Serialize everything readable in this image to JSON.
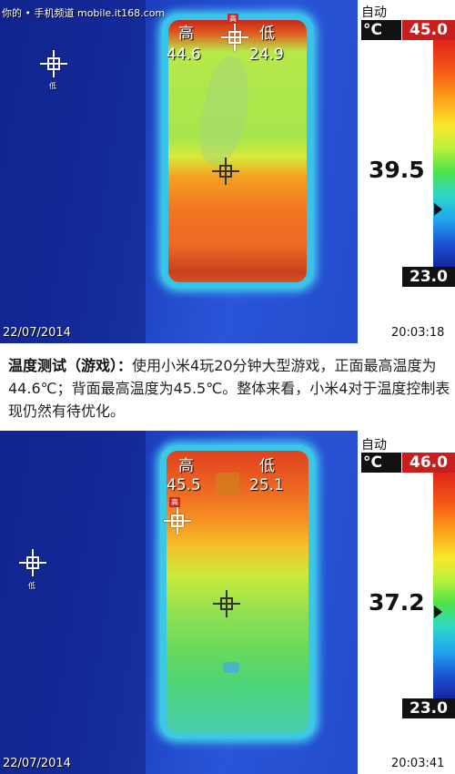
{
  "watermark": "你的 • 手机频道 mobile.it168.com",
  "thermal_1": {
    "label_high": "高",
    "label_low": "低",
    "value_high": "44.6",
    "value_low": "24.9",
    "spot_high_tag": "高",
    "spot_low_tag": "低",
    "mode": "自动",
    "unit": "°C",
    "scale_max": "45.0",
    "center_temp": "39.5",
    "scale_min": "23.0",
    "scale_pointer_fraction": 0.747,
    "date": "22/07/2014",
    "time": "20:03:18"
  },
  "caption": {
    "title": "温度测试（游戏）：",
    "text": "使用小米4玩20分钟大型游戏，正面最高温度为44.6℃；背面最高温度为45.5℃。整体来看，小米4对于温度控制表现仍然有待优化。"
  },
  "thermal_2": {
    "label_high": "高",
    "label_low": "低",
    "value_high": "45.5",
    "value_low": "25.1",
    "spot_high_tag": "高",
    "spot_low_tag": "低",
    "mode": "自动",
    "unit": "°C",
    "scale_max": "46.0",
    "center_temp": "37.2",
    "scale_min": "23.0",
    "scale_pointer_fraction": 0.617,
    "date": "22/07/2014",
    "time": "20:03:41"
  }
}
